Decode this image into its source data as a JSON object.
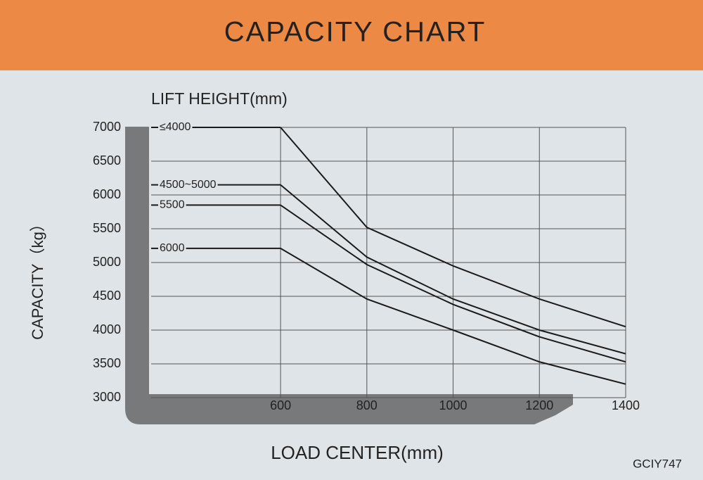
{
  "chart_data": {
    "type": "line",
    "title": "CAPACITY  CHART",
    "legend_title": "LIFT HEIGHT(mm)",
    "y_label": "CAPACITY（kg）",
    "x_label": "LOAD CENTER(mm)",
    "code": "GCIY747",
    "x": [
      600,
      800,
      1000,
      1200,
      1400
    ],
    "series": [
      {
        "name": "≤4000",
        "color": "#1a1a1a",
        "values": [
          7000,
          5520,
          4950,
          4460,
          4050
        ]
      },
      {
        "name": "4500~5000",
        "color": "#1a1a1a",
        "values": [
          6150,
          5080,
          4460,
          4000,
          3650
        ]
      },
      {
        "name": "5500",
        "color": "#1a1a1a",
        "values": [
          5850,
          4970,
          4380,
          3900,
          3530
        ]
      },
      {
        "name": "6000",
        "color": "#1a1a1a",
        "values": [
          5210,
          4460,
          4000,
          3530,
          3200
        ]
      }
    ],
    "xlim": [
      300,
      1400
    ],
    "xticks": [
      600,
      800,
      1000,
      1200,
      1400
    ],
    "ylim": [
      3000,
      7000
    ],
    "yticks": [
      3000,
      3500,
      4000,
      4500,
      5000,
      5500,
      6000,
      6500,
      7000
    ],
    "grid": true
  }
}
